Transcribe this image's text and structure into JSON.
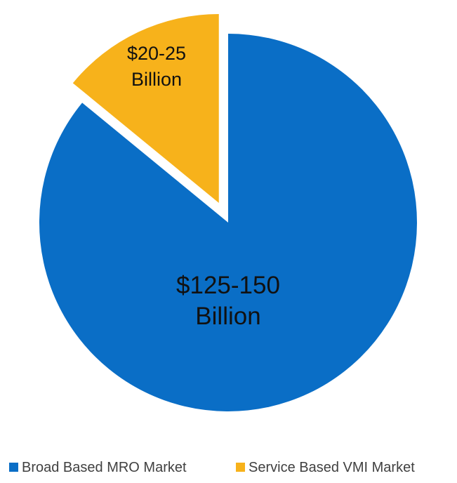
{
  "chart_data": {
    "type": "pie",
    "title": "",
    "categories": [
      "Broad Based MRO Market",
      "Service Based VMI Market"
    ],
    "values": [
      137.5,
      22.5
    ],
    "value_ranges": [
      [
        "$125-150",
        "Billion"
      ],
      [
        "$20-25",
        "Billion"
      ]
    ],
    "colors": [
      "#0A6EC6",
      "#F7B21B"
    ],
    "exploded": [
      false,
      true
    ],
    "legend_position": "bottom"
  }
}
